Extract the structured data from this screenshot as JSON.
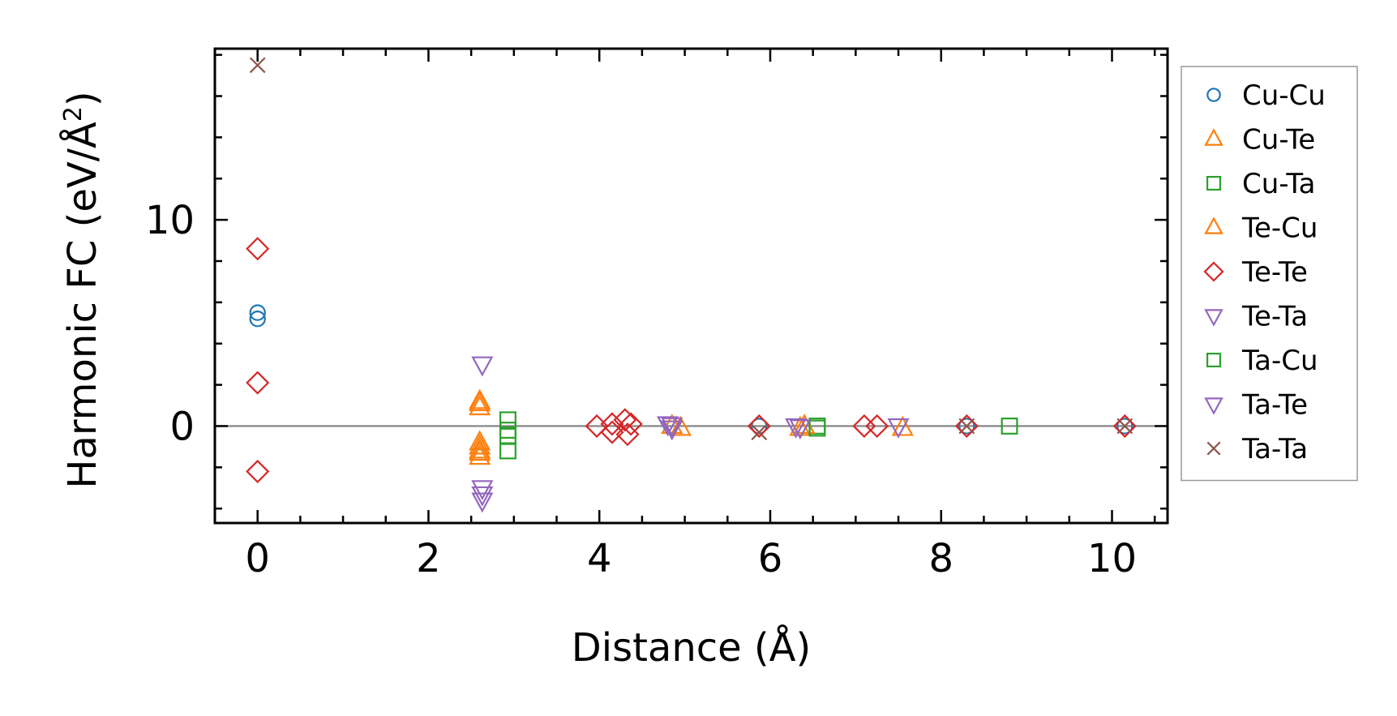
{
  "chart_data": {
    "type": "scatter",
    "xlabel": "Distance (Å)",
    "ylabel": {
      "main": "Harmonic FC (eV/Å",
      "sup": "2",
      "close": ")"
    },
    "xlim": [
      -0.5,
      10.65
    ],
    "ylim": [
      -4.7,
      18.3
    ],
    "xticks": [
      0,
      2,
      4,
      6,
      8,
      10
    ],
    "xtick_labels": [
      "0",
      "2",
      "4",
      "6",
      "8",
      "10"
    ],
    "yticks": [
      0,
      10
    ],
    "ytick_labels": [
      "0",
      "10"
    ],
    "grid": false,
    "zero_line": true,
    "legend_position": "outside-right",
    "series": [
      {
        "name": "Cu-Cu",
        "marker": "circle",
        "color": "#1f77b4",
        "points": [
          [
            0,
            5.5
          ],
          [
            0,
            5.2
          ],
          [
            5.87,
            0.0
          ],
          [
            8.3,
            0.0
          ],
          [
            10.15,
            0.0
          ]
        ]
      },
      {
        "name": "Cu-Te",
        "marker": "triangle-up",
        "color": "#ff7f0e",
        "points": [
          [
            2.6,
            1.2
          ],
          [
            2.6,
            0.9
          ],
          [
            2.6,
            -0.8
          ],
          [
            2.6,
            -1.0
          ],
          [
            2.6,
            -1.3
          ],
          [
            2.6,
            -1.5
          ],
          [
            4.95,
            -0.1
          ],
          [
            6.35,
            -0.1
          ],
          [
            7.55,
            -0.1
          ]
        ]
      },
      {
        "name": "Cu-Ta",
        "marker": "square",
        "color": "#2ca02c",
        "points": [
          [
            2.93,
            0.3
          ],
          [
            2.93,
            -0.5
          ],
          [
            2.93,
            -1.2
          ],
          [
            6.55,
            0.0
          ],
          [
            8.8,
            0.0
          ]
        ]
      },
      {
        "name": "Te-Cu",
        "marker": "triangle-up",
        "color": "#ff7f0e",
        "points": [
          [
            2.6,
            1.1
          ],
          [
            2.6,
            -1.2
          ],
          [
            4.85,
            0.0
          ],
          [
            6.4,
            0.0
          ]
        ]
      },
      {
        "name": "Te-Te",
        "marker": "diamond",
        "color": "#d62728",
        "points": [
          [
            0,
            8.6
          ],
          [
            0,
            2.1
          ],
          [
            0,
            -2.2
          ],
          [
            3.97,
            0.0
          ],
          [
            4.15,
            0.1
          ],
          [
            4.15,
            -0.3
          ],
          [
            4.3,
            0.3
          ],
          [
            4.33,
            -0.4
          ],
          [
            4.37,
            0.1
          ],
          [
            5.87,
            0.0
          ],
          [
            7.1,
            0.0
          ],
          [
            7.25,
            0.0
          ],
          [
            8.3,
            0.0
          ],
          [
            10.15,
            0.0
          ]
        ]
      },
      {
        "name": "Te-Ta",
        "marker": "triangle-down",
        "color": "#9467bd",
        "points": [
          [
            2.63,
            3.0
          ],
          [
            2.63,
            -3.0
          ],
          [
            2.63,
            -3.6
          ],
          [
            4.8,
            0.1
          ],
          [
            4.85,
            -0.1
          ],
          [
            6.3,
            0.0
          ],
          [
            7.5,
            0.0
          ]
        ]
      },
      {
        "name": "Ta-Cu",
        "marker": "square",
        "color": "#2ca02c",
        "points": [
          [
            2.93,
            -0.2
          ],
          [
            6.55,
            -0.1
          ]
        ]
      },
      {
        "name": "Ta-Te",
        "marker": "triangle-down",
        "color": "#9467bd",
        "points": [
          [
            2.63,
            -3.3
          ],
          [
            4.85,
            0.05
          ],
          [
            6.35,
            -0.05
          ]
        ]
      },
      {
        "name": "Ta-Ta",
        "marker": "x",
        "color": "#8c564b",
        "points": [
          [
            0,
            17.5
          ],
          [
            5.87,
            -0.3
          ],
          [
            8.3,
            0.0
          ],
          [
            10.15,
            0.0
          ]
        ]
      }
    ]
  }
}
